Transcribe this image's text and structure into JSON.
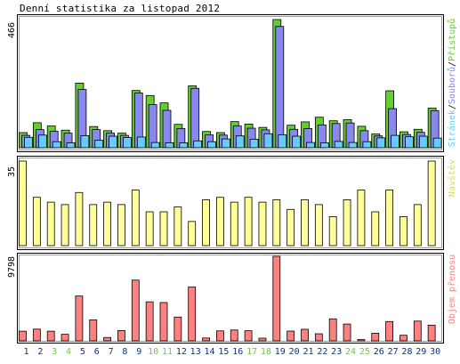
{
  "title": "Denní statistika za listopad 2012",
  "colors": {
    "visits": "#66cc33",
    "files": "#8888ee",
    "hits": "#66ccff",
    "sites": "#ffff99",
    "traffic": "#ff8080",
    "weekend": "#66cc33",
    "weekday": "#003399"
  },
  "chart_data": [
    {
      "type": "bar",
      "name": "traffic-overview",
      "ymax_label": "466",
      "categories": [
        "1",
        "2",
        "3",
        "4",
        "5",
        "6",
        "7",
        "8",
        "9",
        "10",
        "11",
        "12",
        "13",
        "14",
        "15",
        "16",
        "17",
        "18",
        "19",
        "20",
        "21",
        "22",
        "23",
        "24",
        "25",
        "26",
        "27",
        "28",
        "29",
        "30"
      ],
      "weekend_days": [
        "3",
        "4",
        "10",
        "11",
        "17",
        "18",
        "24",
        "25"
      ],
      "legend": {
        "parts": [
          "Přístupů",
          "Souborů",
          "Stránek"
        ],
        "separator": "/"
      },
      "series": [
        {
          "name": "Přístupů",
          "color_key": "visits",
          "values": [
            55,
            91,
            79,
            64,
            235,
            77,
            62,
            53,
            208,
            190,
            163,
            85,
            225,
            59,
            55,
            95,
            86,
            74,
            466,
            82,
            94,
            111,
            98,
            102,
            78,
            50,
            207,
            58,
            67,
            144
          ]
        },
        {
          "name": "Souborů",
          "color_key": "files",
          "values": [
            45,
            66,
            60,
            53,
            212,
            66,
            53,
            45,
            199,
            157,
            136,
            70,
            216,
            47,
            46,
            79,
            71,
            65,
            441,
            67,
            70,
            83,
            88,
            90,
            62,
            43,
            142,
            48,
            56,
            135
          ]
        },
        {
          "name": "Stránek",
          "color_key": "hits",
          "values": [
            38,
            46,
            22,
            18,
            44,
            27,
            42,
            37,
            39,
            19,
            18,
            18,
            25,
            22,
            32,
            43,
            31,
            51,
            47,
            42,
            19,
            18,
            23,
            19,
            22,
            36,
            45,
            40,
            42,
            35
          ]
        }
      ]
    },
    {
      "type": "bar",
      "name": "sites",
      "ymax_label": "35",
      "categories": [
        "1",
        "2",
        "3",
        "4",
        "5",
        "6",
        "7",
        "8",
        "9",
        "10",
        "11",
        "12",
        "13",
        "14",
        "15",
        "16",
        "17",
        "18",
        "19",
        "20",
        "21",
        "22",
        "23",
        "24",
        "25",
        "26",
        "27",
        "28",
        "29",
        "30"
      ],
      "series": [
        {
          "name": "Návštěv",
          "color_key": "sites",
          "values": [
            35,
            20,
            18,
            17,
            22,
            17,
            18,
            17,
            23,
            14,
            14,
            16,
            10,
            19,
            20,
            18,
            20,
            18,
            19,
            15,
            19,
            17,
            12,
            19,
            23,
            14,
            23,
            12,
            17,
            35
          ]
        }
      ]
    },
    {
      "type": "bar",
      "name": "volume",
      "ymax_label": "9798",
      "categories": [
        "1",
        "2",
        "3",
        "4",
        "5",
        "6",
        "7",
        "8",
        "9",
        "10",
        "11",
        "12",
        "13",
        "14",
        "15",
        "16",
        "17",
        "18",
        "19",
        "20",
        "21",
        "22",
        "23",
        "24",
        "25",
        "26",
        "27",
        "28",
        "29",
        "30"
      ],
      "series": [
        {
          "name": "Objem přenosu",
          "color_key": "traffic",
          "values": [
            1120,
            1360,
            1120,
            760,
            5200,
            2440,
            390,
            1200,
            7040,
            4520,
            4440,
            2760,
            6240,
            330,
            1160,
            1260,
            1170,
            310,
            9798,
            1130,
            1340,
            820,
            2550,
            1950,
            150,
            880,
            2240,
            650,
            2290,
            1820
          ]
        }
      ]
    }
  ]
}
